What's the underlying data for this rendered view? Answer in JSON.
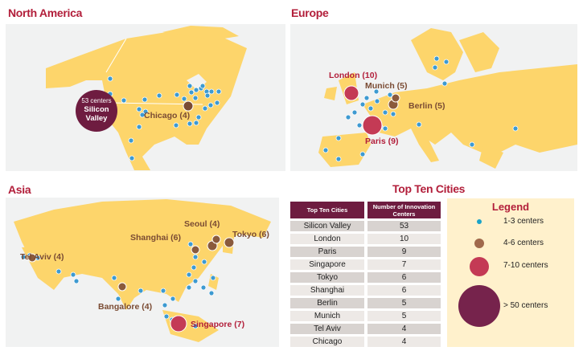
{
  "regions": {
    "north_america": {
      "title": "North America",
      "callout_count": "53 centers",
      "callout_city": "Silicon Valley",
      "chicago": "Chicago (4)"
    },
    "europe": {
      "title": "Europe",
      "london": "London (10)",
      "munich": "Munich (5)",
      "berlin": "Berlin (5)",
      "paris": "Paris (9)"
    },
    "asia": {
      "title": "Asia",
      "seoul": "Seoul (4)",
      "tokyo": "Tokyo (6)",
      "shanghai": "Shanghai (6)",
      "tel_aviv": "Tel Aviv (4)",
      "bangalore": "Bangalore (4)",
      "singapore": "Singapore (7)"
    }
  },
  "top_ten": {
    "title": "Top Ten Cities",
    "headers": [
      "Top Ten Cities",
      "Number of Innovation Centers"
    ],
    "rows": [
      [
        "Silicon Valley",
        "53"
      ],
      [
        "London",
        "10"
      ],
      [
        "Paris",
        "9"
      ],
      [
        "Singapore",
        "7"
      ],
      [
        "Tokyo",
        "6"
      ],
      [
        "Shanghai",
        "6"
      ],
      [
        "Berlin",
        "5"
      ],
      [
        "Munich",
        "5"
      ],
      [
        "Tel Aviv",
        "4"
      ],
      [
        "Chicago",
        "4"
      ]
    ]
  },
  "legend": {
    "title": "Legend",
    "items": [
      "1-3 centers",
      "4-6 centers",
      "7-10 centers",
      "> 50 centers"
    ]
  },
  "colors": {
    "land": "#fdd56b",
    "sea": "#f1f2f2",
    "blue": "#3d9ad1",
    "brown": "#8a5a3c",
    "red": "#c43a55",
    "purple": "#6e1c40",
    "title": "#b21e3a"
  }
}
